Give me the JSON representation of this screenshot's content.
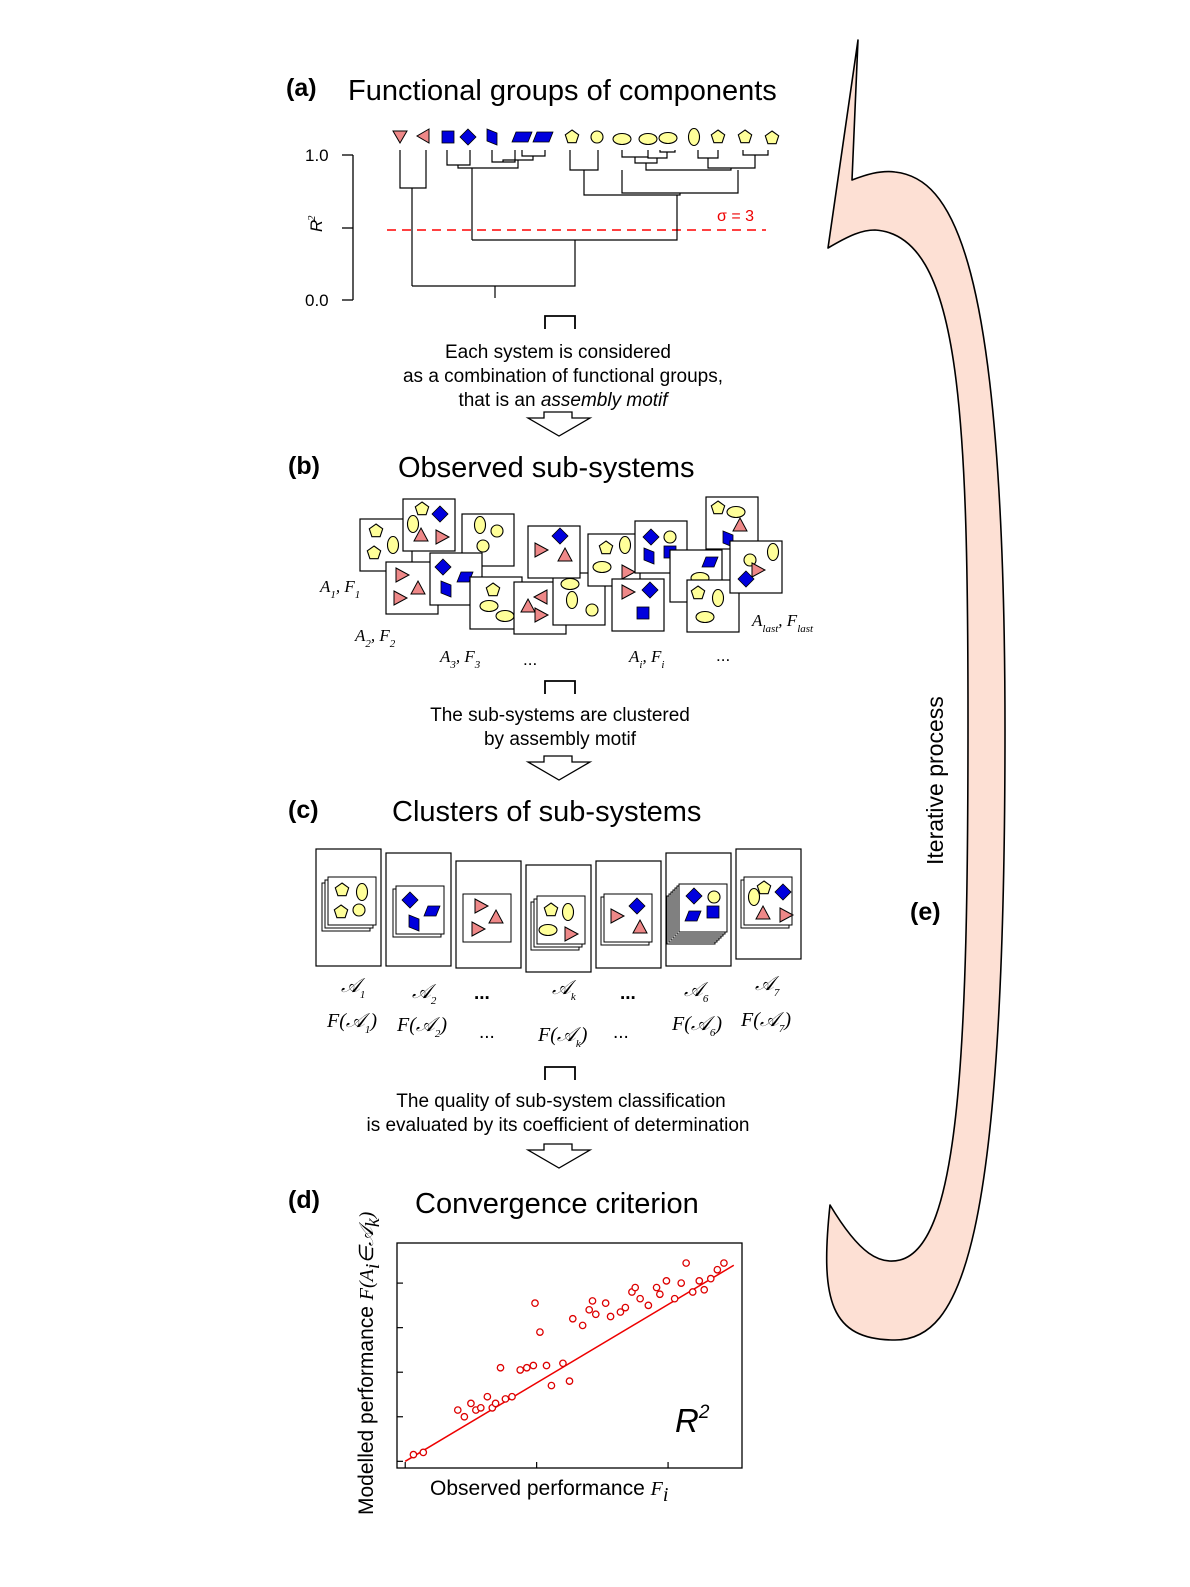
{
  "panel_a": {
    "label": "(a)",
    "title": "Functional groups of components",
    "ytick_top": "1.0",
    "ytick_bottom": "0.0",
    "ylabel": "R",
    "ylabel_sup": "2",
    "threshold": "σ = 3",
    "description": [
      "Each system is considered",
      "as a combination of functional groups,",
      "that is an "
    ],
    "description_em": "assembly motif"
  },
  "panel_b": {
    "label": "(b)",
    "title": "Observed sub-systems",
    "tags": {
      "a1": "A",
      "a1_sub": "1",
      "f1": "F",
      "f1_sub": "1",
      "a2": "A",
      "a2_sub": "2",
      "f2": "F",
      "f2_sub": "2",
      "a3": "A",
      "a3_sub": "3",
      "f3": "F",
      "f3_sub": "3",
      "dots1": "...",
      "ai": "A",
      "ai_sub": "i",
      "fi": "F",
      "fi_sub": "i",
      "dots2": "...",
      "alast": "A",
      "alast_sub": "last",
      "flast": "F",
      "flast_sub": "last"
    },
    "description": [
      "The sub-systems are clustered",
      "by assembly motif"
    ]
  },
  "panel_c": {
    "label": "(c)",
    "title": "Clusters of sub-systems",
    "clusters": [
      {
        "name": "𝒜",
        "sub": "1",
        "f_open": "F(𝒜",
        "f_sub": "1",
        "f_close": ")"
      },
      {
        "name": "𝒜",
        "sub": "2",
        "f_open": "F(𝒜",
        "f_sub": "2",
        "f_close": ")"
      },
      {
        "name": "...",
        "sub": "",
        "f_open": "...",
        "f_sub": "",
        "f_close": ""
      },
      {
        "name": "𝒜",
        "sub": "k",
        "f_open": "F(𝒜",
        "f_sub": "k",
        "f_close": ")"
      },
      {
        "name": "...",
        "sub": "",
        "f_open": "...",
        "f_sub": "",
        "f_close": ""
      },
      {
        "name": "𝒜",
        "sub": "6",
        "f_open": "F(𝒜",
        "f_sub": "6",
        "f_close": ")"
      },
      {
        "name": "𝒜",
        "sub": "7",
        "f_open": "F(𝒜",
        "f_sub": "7",
        "f_close": ")"
      }
    ],
    "description": [
      "The quality of sub-system classification",
      "is evaluated by its coefficient of determination"
    ]
  },
  "panel_d": {
    "label": "(d)",
    "title": "Convergence criterion",
    "xlabel": "Observed performance ",
    "xlabel_var": "F",
    "xlabel_sub": "i",
    "ylabel": "Modelled performance ",
    "ylabel_var": "F(A",
    "ylabel_sub": "i",
    "ylabel_tail": "∈𝒜",
    "ylabel_tail_sub": "k",
    "ylabel_close": ")",
    "r2": "R",
    "r2_sup": "2"
  },
  "panel_e": {
    "label": "(e)",
    "text": "Iterative process"
  },
  "colors": {
    "yellow": "#ffff99",
    "blue": "#0000dd",
    "pink": "#ee8888",
    "red": "#dd0000",
    "arrow_fill": "#fde0d4"
  },
  "chart_data": {
    "type": "scatter",
    "title": "Convergence criterion",
    "xlabel": "Observed performance F_i",
    "ylabel": "Modelled performance F(A_i ∈ 𝒜_k)",
    "x": [
      0.5,
      1.1,
      3.2,
      3.6,
      4.0,
      4.3,
      4.6,
      5.0,
      5.3,
      5.5,
      5.8,
      6.1,
      6.5,
      7.0,
      7.4,
      7.8,
      7.9,
      8.2,
      8.6,
      8.9,
      9.6,
      10.0,
      10.2,
      10.8,
      11.2,
      11.4,
      11.6,
      12.2,
      12.5,
      13.1,
      13.4,
      13.8,
      14.0,
      14.3,
      14.8,
      15.3,
      15.5,
      15.9,
      16.4,
      16.8,
      17.1,
      17.5,
      17.9,
      18.2,
      18.6,
      19.0,
      19.4
    ],
    "y": [
      0.3,
      0.4,
      2.3,
      2.0,
      2.6,
      2.3,
      2.4,
      2.9,
      2.4,
      2.6,
      4.2,
      2.8,
      2.9,
      4.1,
      4.2,
      4.3,
      7.1,
      5.8,
      4.3,
      3.4,
      4.4,
      3.6,
      6.4,
      6.1,
      6.8,
      7.2,
      6.6,
      7.1,
      6.5,
      6.7,
      6.9,
      7.6,
      7.8,
      7.3,
      7.0,
      7.8,
      7.5,
      8.1,
      7.3,
      8.0,
      8.9,
      7.6,
      8.1,
      7.7,
      8.2,
      8.6,
      8.9
    ],
    "fit_line": {
      "x": [
        0.0,
        20.0
      ],
      "y": [
        0.0,
        8.8
      ]
    },
    "xlim": [
      -0.5,
      20.5
    ],
    "ylim": [
      -0.3,
      9.8
    ],
    "grid": false,
    "annotation": "R²"
  }
}
